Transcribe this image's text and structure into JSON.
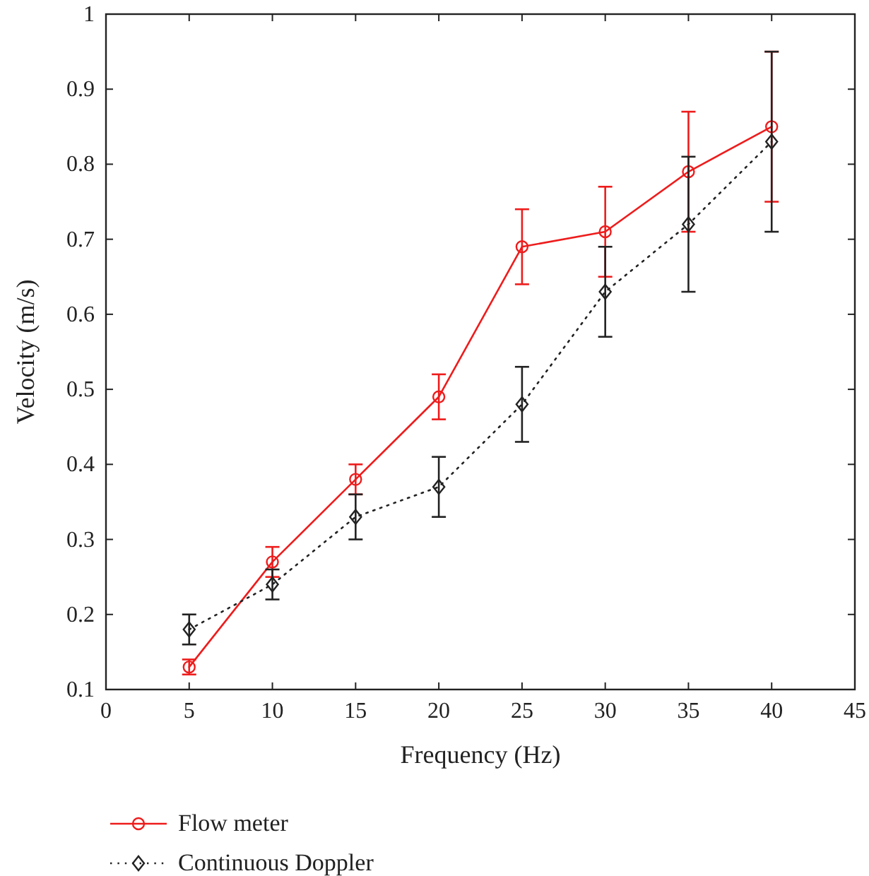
{
  "chart_data": {
    "type": "line",
    "xlabel": "Frequency (Hz)",
    "ylabel": "Velocity (m/s)",
    "x": [
      5,
      10,
      15,
      20,
      25,
      30,
      35,
      40
    ],
    "xlim": [
      0,
      45
    ],
    "xticks": [
      0,
      5,
      10,
      15,
      20,
      25,
      30,
      35,
      40,
      45
    ],
    "ylim": [
      0.1,
      1
    ],
    "yticks": [
      0.1,
      0.2,
      0.3,
      0.4,
      0.5,
      0.6,
      0.7,
      0.8,
      0.9,
      1
    ],
    "grid": false,
    "legend": "bottom",
    "series": [
      {
        "name": "Flow meter",
        "color": "#ee1c1c",
        "marker": "circle",
        "line_style": "solid",
        "values": [
          0.13,
          0.27,
          0.38,
          0.49,
          0.69,
          0.71,
          0.79,
          0.85
        ],
        "errors": [
          0.01,
          0.02,
          0.02,
          0.03,
          0.05,
          0.06,
          0.08,
          0.1
        ]
      },
      {
        "name": "Continuous Doppler",
        "color": "#222222",
        "marker": "diamond",
        "line_style": "dotted",
        "values": [
          0.18,
          0.24,
          0.33,
          0.37,
          0.48,
          0.63,
          0.72,
          0.83
        ],
        "errors": [
          0.02,
          0.02,
          0.03,
          0.04,
          0.05,
          0.06,
          0.09,
          0.12
        ]
      }
    ]
  }
}
